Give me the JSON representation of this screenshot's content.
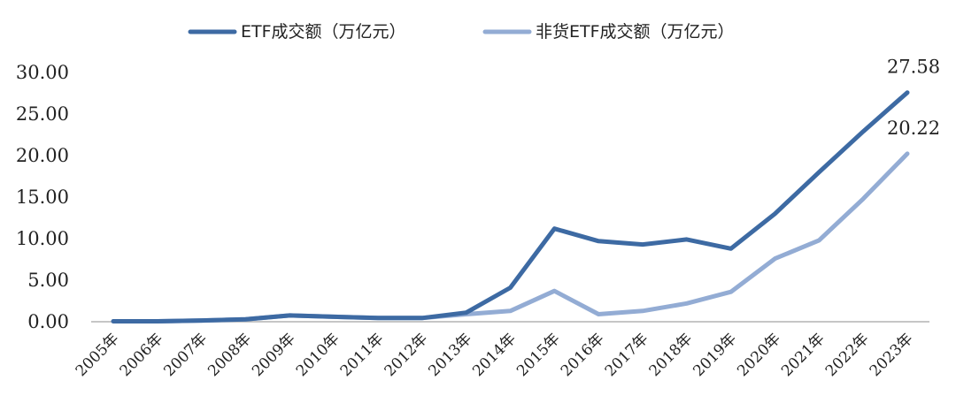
{
  "chart_data": {
    "type": "line",
    "categories": [
      "2005年",
      "2006年",
      "2007年",
      "2008年",
      "2009年",
      "2010年",
      "2011年",
      "2012年",
      "2013年",
      "2014年",
      "2015年",
      "2016年",
      "2017年",
      "2018年",
      "2019年",
      "2020年",
      "2021年",
      "2022年",
      "2023年"
    ],
    "series": [
      {
        "name": "ETF成交额（万亿元）",
        "color": "#3d6aa3",
        "values": [
          0.05,
          0.05,
          0.15,
          0.3,
          0.75,
          0.6,
          0.45,
          0.45,
          1.1,
          4.1,
          11.2,
          9.7,
          9.3,
          9.9,
          8.8,
          13.0,
          18.0,
          22.9,
          27.58
        ]
      },
      {
        "name": "非货ETF成交额（万亿元）",
        "color": "#93acd4",
        "values": [
          0.05,
          0.05,
          0.15,
          0.3,
          0.75,
          0.6,
          0.45,
          0.45,
          0.9,
          1.3,
          3.7,
          0.9,
          1.3,
          2.2,
          3.6,
          7.6,
          9.8,
          14.8,
          20.22
        ]
      }
    ],
    "ylim": [
      0,
      30
    ],
    "yticks": [
      "0.00",
      "5.00",
      "10.00",
      "15.00",
      "20.00",
      "25.00",
      "30.00"
    ],
    "data_labels": [
      {
        "series": 0,
        "index": 18,
        "text": "27.58"
      },
      {
        "series": 1,
        "index": 18,
        "text": "20.22"
      }
    ],
    "legend_position": "top-center",
    "grid": false
  }
}
